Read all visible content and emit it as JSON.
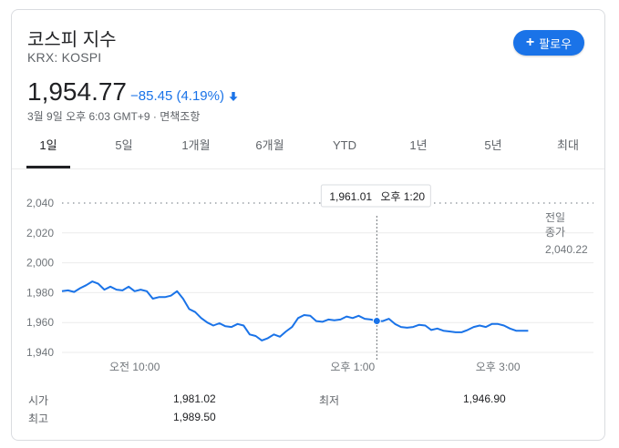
{
  "header": {
    "title": "코스피 지수",
    "subtitle": "KRX: KOSPI",
    "follow_label": "팔로우"
  },
  "quote": {
    "price": "1,954.77",
    "change": "−85.45 (4.19%)",
    "direction": "down",
    "timestamp": "3월 9일 오후 6:03 GMT+9 · 면책조항"
  },
  "tabs": [
    {
      "label": "1일",
      "active": true
    },
    {
      "label": "5일",
      "active": false
    },
    {
      "label": "1개월",
      "active": false
    },
    {
      "label": "6개월",
      "active": false
    },
    {
      "label": "YTD",
      "active": false
    },
    {
      "label": "1년",
      "active": false
    },
    {
      "label": "5년",
      "active": false
    },
    {
      "label": "최대",
      "active": false
    }
  ],
  "chart_data": {
    "type": "line",
    "y_ticks": [
      "2,040",
      "2,020",
      "2,000",
      "1,980",
      "1,960",
      "1,940"
    ],
    "ylim": [
      1940,
      2040
    ],
    "x_ticks": [
      "오전 10:00",
      "오후 1:00",
      "오후 3:00"
    ],
    "x_tick_positions": [
      60,
      240,
      360
    ],
    "xlim": [
      0,
      390
    ],
    "grid": true,
    "previous_close": {
      "label_line1": "전일",
      "label_line2": "종가",
      "value": 2040.22,
      "value_text": "2,040.22"
    },
    "tooltip": {
      "value": "1,961.01",
      "time": "오후 1:20",
      "x": 260,
      "y": 1961.01
    },
    "series": [
      {
        "color": "#1a73e8",
        "x": [
          0,
          5,
          10,
          15,
          20,
          25,
          30,
          35,
          40,
          45,
          50,
          55,
          60,
          65,
          70,
          75,
          80,
          85,
          90,
          95,
          100,
          105,
          110,
          115,
          120,
          125,
          130,
          135,
          140,
          145,
          150,
          155,
          160,
          165,
          170,
          175,
          180,
          185,
          190,
          195,
          200,
          205,
          210,
          215,
          220,
          225,
          230,
          235,
          240,
          245,
          250,
          255,
          260,
          265,
          270,
          275,
          280,
          285,
          290,
          295,
          300,
          305,
          310,
          315,
          320,
          325,
          330,
          335,
          340,
          345,
          350,
          355,
          360,
          365,
          370,
          375,
          380,
          385
        ],
        "y": [
          1981,
          1981.5,
          1980.5,
          1983,
          1985,
          1987.5,
          1986,
          1982,
          1984,
          1982,
          1981.5,
          1984,
          1981,
          1982,
          1981,
          1976,
          1977,
          1977,
          1978,
          1981,
          1976,
          1969,
          1967,
          1963,
          1960,
          1958,
          1959.5,
          1957.5,
          1957,
          1959,
          1958,
          1952,
          1951,
          1948,
          1949.5,
          1952,
          1950.5,
          1954,
          1957,
          1963,
          1965,
          1964.5,
          1961,
          1960.5,
          1962,
          1961.5,
          1962,
          1964,
          1963,
          1964.5,
          1962.5,
          1962,
          1961,
          1961,
          1962.5,
          1959,
          1957,
          1956.5,
          1957,
          1958.5,
          1958,
          1955,
          1956,
          1954.5,
          1954,
          1953.5,
          1953.5,
          1955,
          1957,
          1958,
          1957,
          1959,
          1959,
          1958,
          1956,
          1954.5,
          1954.5,
          1954.5
        ]
      }
    ]
  },
  "stats": [
    {
      "label": "시가",
      "value": "1,981.02"
    },
    {
      "label": "최고",
      "value": "1,989.50"
    },
    {
      "label": "최저",
      "value": "1,946.90"
    }
  ],
  "colors": {
    "accent": "#1a73e8",
    "line": "#1a73e8",
    "grid": "#ebebeb"
  }
}
